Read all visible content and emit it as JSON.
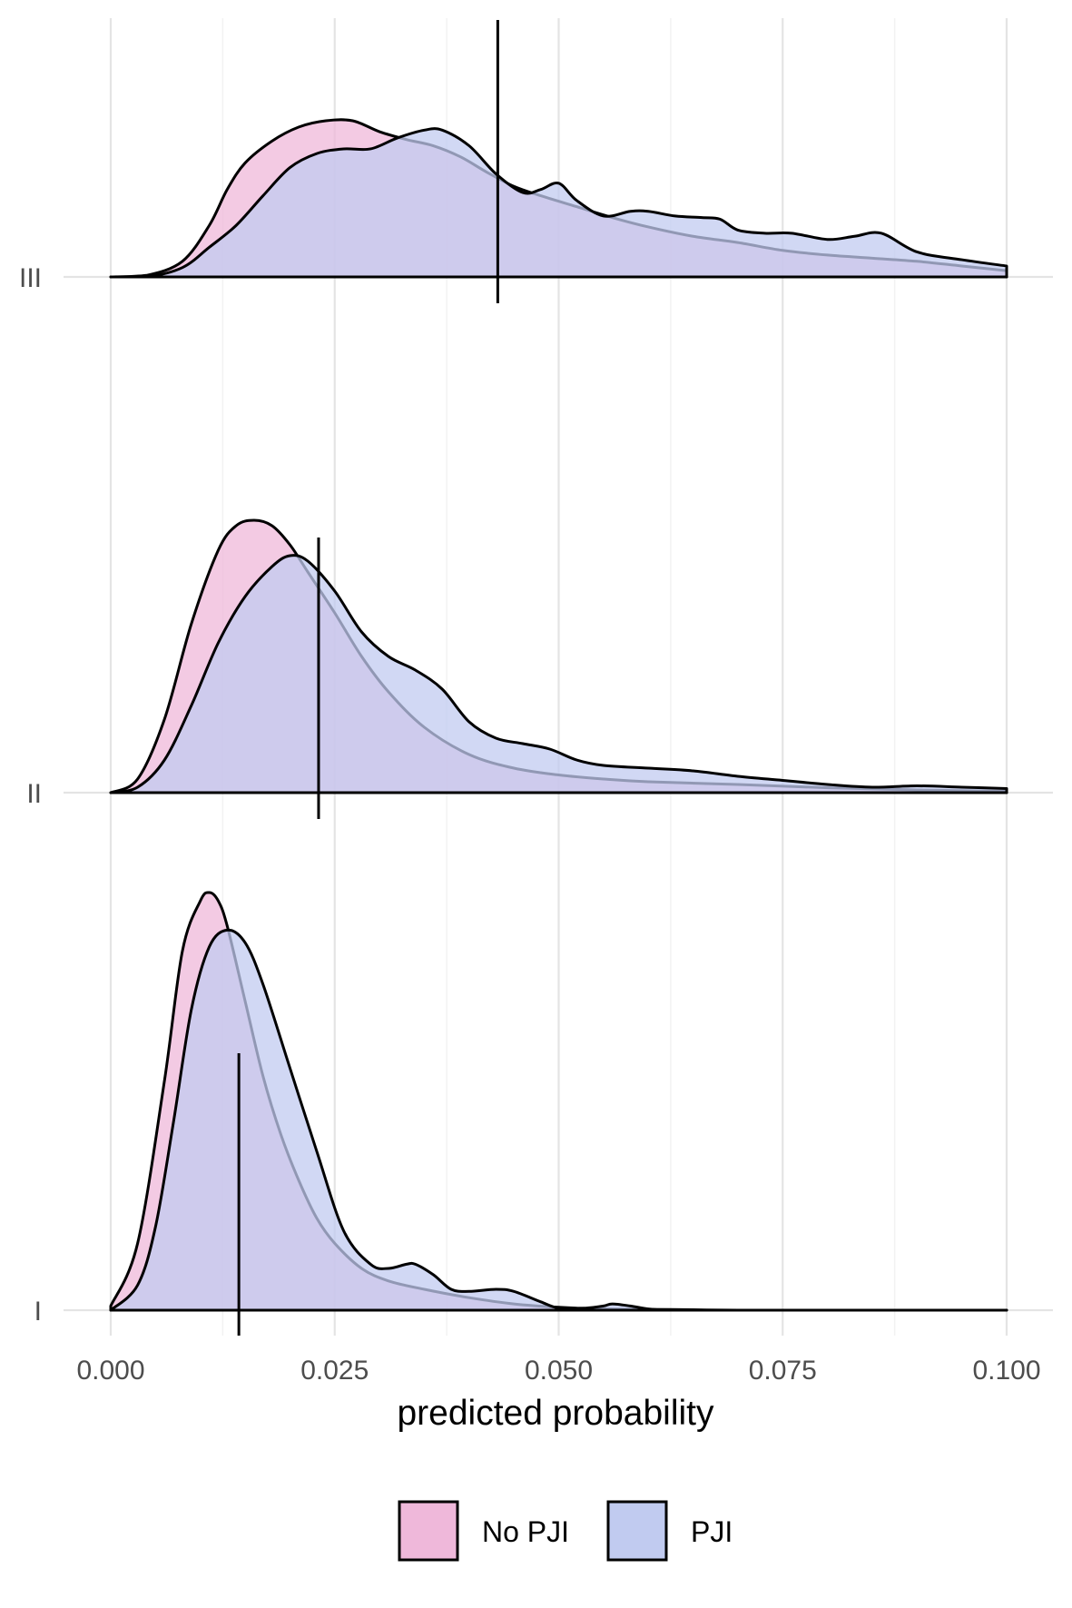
{
  "chart_data": {
    "type": "area",
    "subtype": "ridgeline-density",
    "title": "",
    "xlabel": "predicted probability",
    "ylabel": "",
    "xlim": [
      0,
      0.1
    ],
    "x_ticks": [
      0,
      0.025,
      0.05,
      0.075,
      0.1
    ],
    "x_tick_labels": [
      "0.000",
      "0.025",
      "0.050",
      "0.075",
      "0.100"
    ],
    "grid": true,
    "legend_position": "bottom",
    "colors": {
      "No PJI": "#efb8da",
      "PJI": "#c1cbf0",
      "overlap": "#b9a1dc",
      "outline": "#000000"
    },
    "groups": [
      {
        "label": "I",
        "cutoff": 0.0143,
        "series": [
          {
            "name": "No PJI",
            "x": [
              0,
              0.003,
              0.006,
              0.008,
              0.01,
              0.011,
              0.012,
              0.013,
              0.015,
              0.017,
              0.019,
              0.021,
              0.023,
              0.025,
              0.028,
              0.031,
              0.035,
              0.04,
              0.045,
              0.05,
              0.055,
              0.06,
              0.065,
              0.07,
              0.08,
              0.09,
              0.1
            ],
            "y": [
              0.01,
              0.16,
              0.55,
              0.86,
              0.98,
              1.0,
              0.98,
              0.92,
              0.74,
              0.56,
              0.42,
              0.31,
              0.22,
              0.16,
              0.1,
              0.07,
              0.05,
              0.03,
              0.015,
              0.007,
              0.003,
              0.002,
              0.001,
              0.0,
              0.0,
              0.0,
              0.0
            ]
          },
          {
            "name": "PJI",
            "x": [
              0,
              0.003,
              0.005,
              0.007,
              0.009,
              0.011,
              0.013,
              0.015,
              0.017,
              0.02,
              0.023,
              0.026,
              0.029,
              0.031,
              0.033,
              0.034,
              0.036,
              0.038,
              0.04,
              0.043,
              0.045,
              0.048,
              0.05,
              0.053,
              0.055,
              0.056,
              0.058,
              0.06,
              0.062,
              0.065,
              0.08,
              0.1
            ],
            "y": [
              0.0,
              0.06,
              0.2,
              0.45,
              0.72,
              0.87,
              0.91,
              0.88,
              0.78,
              0.58,
              0.38,
              0.19,
              0.11,
              0.1,
              0.11,
              0.11,
              0.085,
              0.05,
              0.045,
              0.05,
              0.045,
              0.02,
              0.005,
              0.005,
              0.01,
              0.015,
              0.01,
              0.003,
              0.0,
              0.0,
              0.0,
              0.0
            ]
          }
        ]
      },
      {
        "label": "II",
        "cutoff": 0.0232,
        "series": [
          {
            "name": "No PJI",
            "x": [
              0,
              0.003,
              0.006,
              0.009,
              0.012,
              0.014,
              0.016,
              0.018,
              0.02,
              0.022,
              0.025,
              0.028,
              0.031,
              0.035,
              0.04,
              0.045,
              0.05,
              0.055,
              0.06,
              0.07,
              0.08,
              0.09,
              0.1
            ],
            "y": [
              0.0,
              0.05,
              0.27,
              0.62,
              0.89,
              0.98,
              1.0,
              0.98,
              0.91,
              0.81,
              0.66,
              0.5,
              0.37,
              0.24,
              0.14,
              0.09,
              0.065,
              0.05,
              0.04,
              0.03,
              0.018,
              0.01,
              0.005
            ]
          },
          {
            "name": "PJI",
            "x": [
              0,
              0.003,
              0.006,
              0.009,
              0.012,
              0.015,
              0.018,
              0.02,
              0.022,
              0.025,
              0.028,
              0.031,
              0.034,
              0.037,
              0.04,
              0.043,
              0.046,
              0.049,
              0.052,
              0.055,
              0.06,
              0.065,
              0.07,
              0.075,
              0.08,
              0.085,
              0.09,
              0.095,
              0.1
            ],
            "y": [
              0.0,
              0.02,
              0.12,
              0.32,
              0.55,
              0.72,
              0.83,
              0.87,
              0.85,
              0.74,
              0.59,
              0.5,
              0.45,
              0.38,
              0.26,
              0.2,
              0.18,
              0.16,
              0.12,
              0.1,
              0.09,
              0.08,
              0.06,
              0.045,
              0.03,
              0.02,
              0.025,
              0.02,
              0.015
            ]
          }
        ]
      },
      {
        "label": "III",
        "cutoff": 0.0432,
        "series": [
          {
            "name": "No PJI",
            "x": [
              0,
              0.004,
              0.008,
              0.011,
              0.013,
              0.015,
              0.018,
              0.021,
              0.024,
              0.027,
              0.03,
              0.033,
              0.036,
              0.039,
              0.042,
              0.045,
              0.048,
              0.052,
              0.056,
              0.06,
              0.065,
              0.07,
              0.075,
              0.08,
              0.085,
              0.09,
              0.095,
              0.1
            ],
            "y": [
              0.0,
              0.01,
              0.1,
              0.33,
              0.56,
              0.73,
              0.87,
              0.96,
              1.0,
              1.0,
              0.93,
              0.88,
              0.84,
              0.77,
              0.67,
              0.58,
              0.52,
              0.45,
              0.38,
              0.32,
              0.26,
              0.22,
              0.17,
              0.14,
              0.12,
              0.1,
              0.07,
              0.04
            ]
          },
          {
            "name": "PJI",
            "x": [
              0,
              0.004,
              0.008,
              0.011,
              0.014,
              0.017,
              0.02,
              0.023,
              0.026,
              0.029,
              0.032,
              0.035,
              0.037,
              0.04,
              0.043,
              0.046,
              0.048,
              0.05,
              0.052,
              0.055,
              0.058,
              0.06,
              0.063,
              0.066,
              0.068,
              0.07,
              0.073,
              0.076,
              0.08,
              0.083,
              0.086,
              0.09,
              0.095,
              0.1
            ],
            "y": [
              0.0,
              0.0,
              0.06,
              0.19,
              0.33,
              0.52,
              0.7,
              0.79,
              0.82,
              0.82,
              0.89,
              0.94,
              0.94,
              0.84,
              0.66,
              0.54,
              0.56,
              0.6,
              0.49,
              0.39,
              0.42,
              0.42,
              0.39,
              0.38,
              0.37,
              0.3,
              0.28,
              0.28,
              0.24,
              0.26,
              0.28,
              0.16,
              0.11,
              0.07
            ]
          }
        ]
      }
    ],
    "legend": [
      "No PJI",
      "PJI"
    ]
  }
}
